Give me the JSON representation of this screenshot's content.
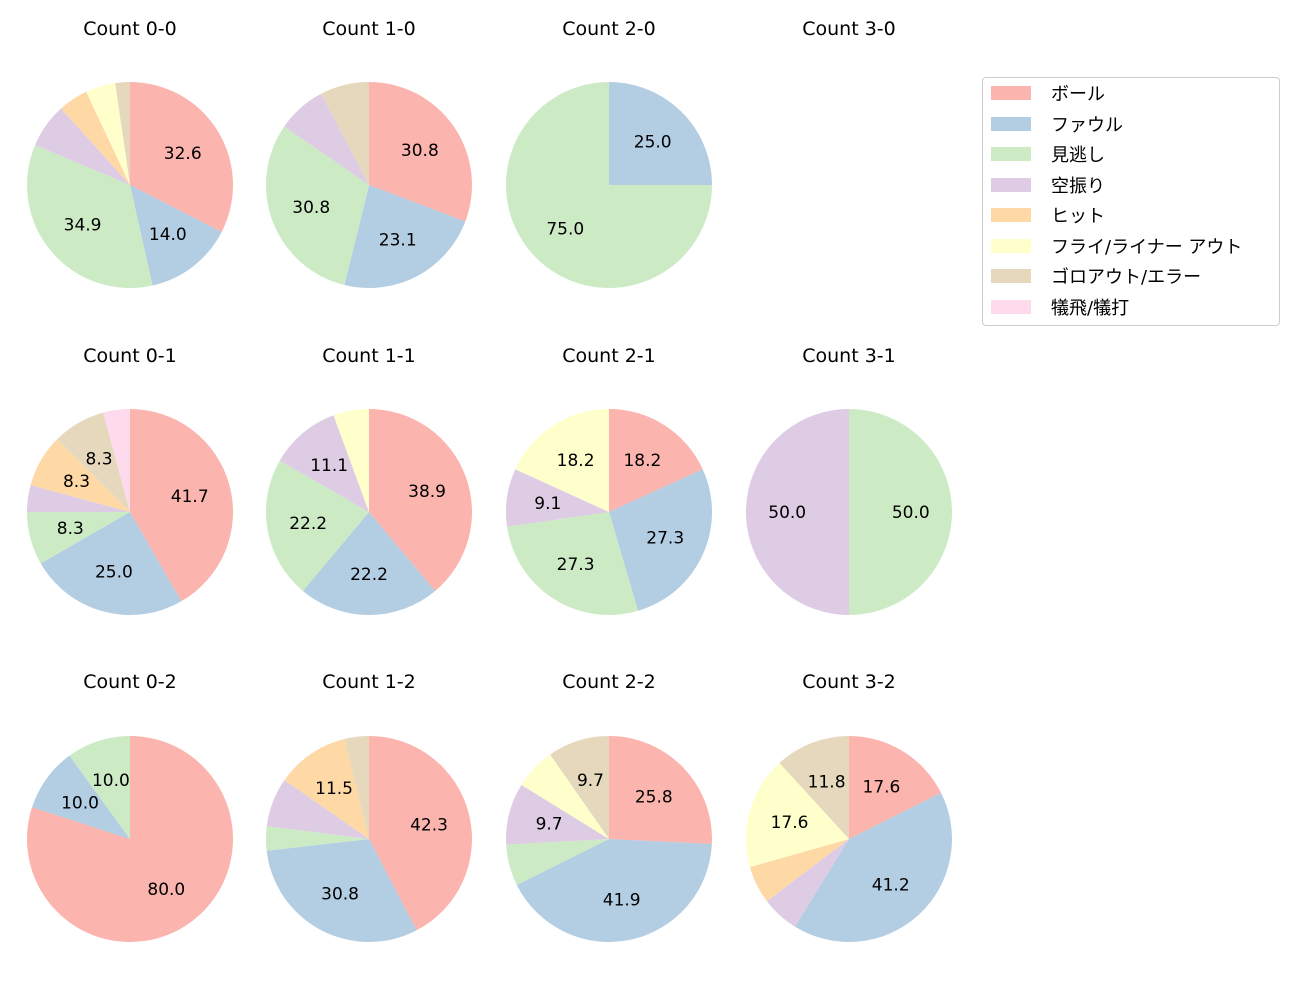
{
  "chart_data": {
    "type": "pie",
    "categories": [
      "ボール",
      "ファウル",
      "見逃し",
      "空振り",
      "ヒット",
      "フライ/ライナー アウト",
      "ゴロアウト/エラー",
      "犠飛/犠打"
    ],
    "colors": [
      "#fbb4ae",
      "#b3cde3",
      "#ccebc5",
      "#decbe4",
      "#fed9a6",
      "#ffffcc",
      "#e5d8bd",
      "#fddaec"
    ],
    "legend_position": "right",
    "value_unit": "percent",
    "label_min_percent": 8,
    "pies": [
      {
        "title": "Count 0-0",
        "values": [
          32.6,
          14.0,
          34.9,
          7.0,
          4.7,
          4.7,
          2.3,
          0
        ]
      },
      {
        "title": "Count 1-0",
        "values": [
          30.8,
          23.1,
          30.8,
          7.7,
          0,
          0,
          7.7,
          0
        ]
      },
      {
        "title": "Count 2-0",
        "values": [
          0,
          25.0,
          75.0,
          0,
          0,
          0,
          0,
          0
        ]
      },
      {
        "title": "Count 3-0",
        "values": [
          0,
          0,
          0,
          0,
          0,
          0,
          0,
          0
        ]
      },
      {
        "title": "Count 0-1",
        "values": [
          41.7,
          25.0,
          8.3,
          4.2,
          8.3,
          0,
          8.3,
          4.2
        ]
      },
      {
        "title": "Count 1-1",
        "values": [
          38.9,
          22.2,
          22.2,
          11.1,
          0,
          5.6,
          0,
          0
        ]
      },
      {
        "title": "Count 2-1",
        "values": [
          18.2,
          27.3,
          27.3,
          9.1,
          0,
          18.2,
          0,
          0
        ]
      },
      {
        "title": "Count 3-1",
        "values": [
          0,
          0,
          50.0,
          50.0,
          0,
          0,
          0,
          0
        ]
      },
      {
        "title": "Count 0-2",
        "values": [
          80.0,
          10.0,
          10.0,
          0,
          0,
          0,
          0,
          0
        ]
      },
      {
        "title": "Count 1-2",
        "values": [
          42.3,
          30.8,
          3.8,
          7.7,
          11.5,
          0,
          3.8,
          0
        ]
      },
      {
        "title": "Count 2-2",
        "values": [
          25.8,
          41.9,
          6.5,
          9.7,
          0,
          6.5,
          9.7,
          0
        ]
      },
      {
        "title": "Count 3-2",
        "values": [
          17.6,
          41.2,
          0,
          5.9,
          5.9,
          17.6,
          11.8,
          0
        ]
      }
    ]
  }
}
